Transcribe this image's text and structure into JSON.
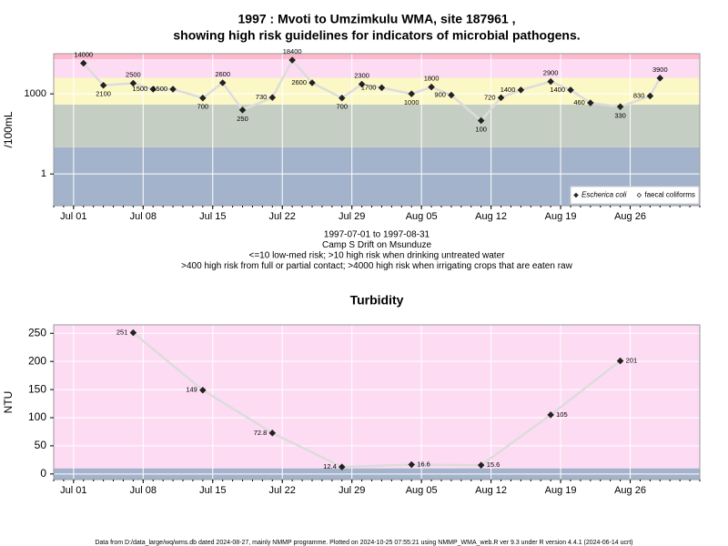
{
  "chart_data": [
    {
      "type": "line",
      "log_scale": true,
      "grid": true,
      "legend": "bottom-right",
      "title": [
        "1997 : Mvoti to Umzimkulu WMA, site 187961 ,",
        "showing high risk guidelines for indicators of microbial pathogens."
      ],
      "y_label": "/100mL",
      "notes": [
        "1997-07-01 to 1997-08-31",
        "Camp S Drift on Msunduze",
        "<=10 low-med risk; >10 high risk when drinking untreated water",
        ">400 high risk from full or partial contact; >4000 high risk when irrigating crops that are eaten raw"
      ],
      "x": [
        "Jul 02",
        "Jul 04",
        "Jul 07",
        "Jul 09",
        "Jul 11",
        "Jul 14",
        "Jul 16",
        "Jul 18",
        "Jul 21",
        "Jul 23",
        "Jul 25",
        "Jul 28",
        "Jul 30",
        "Aug 01",
        "Aug 04",
        "Aug 06",
        "Aug 08",
        "Aug 11",
        "Aug 13",
        "Aug 15",
        "Aug 18",
        "Aug 20",
        "Aug 22",
        "Aug 25",
        "Aug 28",
        "Aug 29"
      ],
      "series": [
        {
          "name": "Escherica coli",
          "color": "#222222",
          "marker": "filled",
          "line_color": "#dcdcdc",
          "values": [
            14000,
            2100,
            2500,
            1500,
            1500,
            700,
            2600,
            250,
            730,
            18400,
            2600,
            700,
            2300,
            1700,
            1000,
            1800,
            900,
            100,
            720,
            1400,
            2900,
            1400,
            460,
            330,
            830,
            3900
          ]
        },
        {
          "name": "faecal coliforms",
          "color": "#222222",
          "marker": "open",
          "line_color": "#dcdcdc",
          "values": [
            null,
            null,
            null,
            null,
            null,
            null,
            null,
            null,
            null,
            null,
            null,
            null,
            null,
            null,
            null,
            null,
            null,
            null,
            null,
            null,
            null,
            null,
            null,
            null,
            null,
            null
          ]
        }
      ],
      "xlim": [
        "Jun 29",
        "Sep 02"
      ],
      "xticks": [
        "Jul 01",
        "Jul 08",
        "Jul 15",
        "Jul 22",
        "Jul 29",
        "Aug 05",
        "Aug 12",
        "Aug 19",
        "Aug 26"
      ],
      "ylim": [
        0.065,
        32000
      ],
      "yticks": [
        1,
        1000
      ],
      "bands": [
        {
          "to": 10,
          "color": "#a3b3cb"
        },
        {
          "to": 400,
          "color": "#c5cec3"
        },
        {
          "to": 4000,
          "color": "#fcf8c6"
        },
        {
          "to": 20000,
          "color": "#fddcf3"
        },
        {
          "to": 32000,
          "color": "#fdb8cc"
        }
      ]
    },
    {
      "type": "line",
      "log_scale": false,
      "grid": true,
      "title": [
        "Turbidity"
      ],
      "y_label": "NTU",
      "x": [
        "Jul 07",
        "Jul 14",
        "Jul 21",
        "Jul 28",
        "Aug 04",
        "Aug 11",
        "Aug 18",
        "Aug 25"
      ],
      "series": [
        {
          "color": "#222222",
          "marker": "filled",
          "line_color": "#dcdcdc",
          "values": [
            251,
            149,
            72.8,
            12.4,
            16.6,
            15.6,
            105,
            201
          ]
        }
      ],
      "xlim": [
        "Jun 29",
        "Sep 02"
      ],
      "xticks": [
        "Jul 01",
        "Jul 08",
        "Jul 15",
        "Jul 22",
        "Jul 29",
        "Aug 05",
        "Aug 12",
        "Aug 19",
        "Aug 26"
      ],
      "ylim": [
        -10,
        265
      ],
      "yticks": [
        0,
        50,
        100,
        150,
        200,
        250
      ],
      "bands": [
        {
          "to": 10,
          "color": "#a3b3cb"
        },
        {
          "to": 265,
          "color": "#fddcf3"
        }
      ]
    }
  ],
  "footer": "Data from D:/data_large/wq/wms.db dated 2024-08-27, mainly NMMP programme. Plotted on 2024-10-25 07:55:21 using NMMP_WMA_web.R ver 9.3 under R version 4.4.1 (2024-06-14 ucrt)"
}
